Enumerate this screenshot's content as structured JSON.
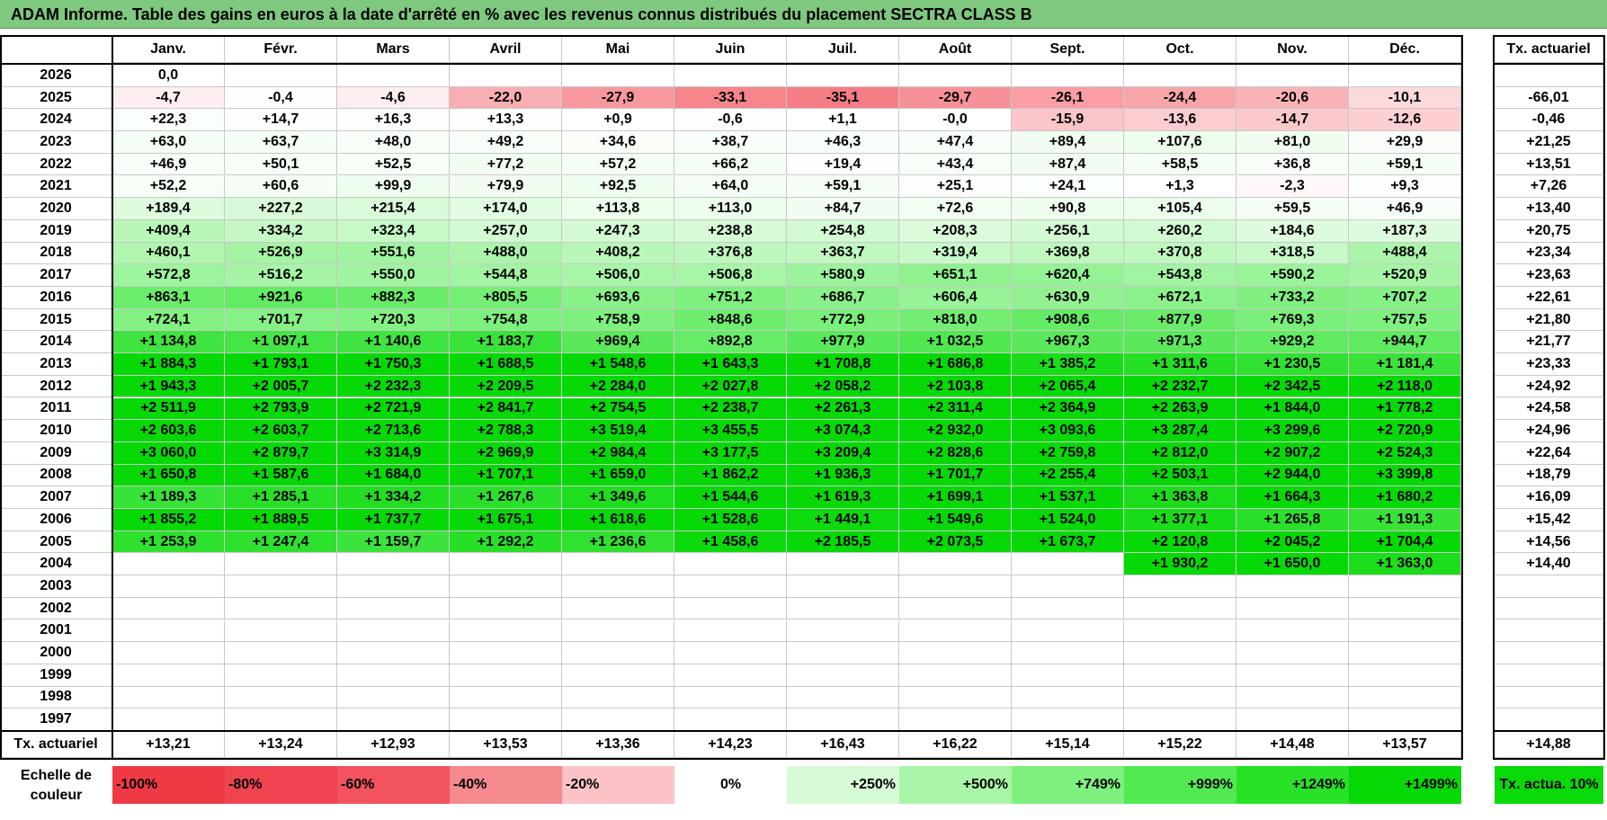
{
  "title": "ADAM Informe. Table des gains en euros à la date d'arrêté en % avec les revenus connus distribués du placement SECTRA CLASS B",
  "months": [
    "Janv.",
    "Févr.",
    "Mars",
    "Avril",
    "Mai",
    "Juin",
    "Juil.",
    "Août",
    "Sept.",
    "Oct.",
    "Nov.",
    "Déc."
  ],
  "rate_header": "Tx. actuariel",
  "rows": [
    {
      "year": "2026",
      "values": [
        "0,0",
        "",
        "",
        "",
        "",
        "",
        "",
        "",
        "",
        "",
        "",
        ""
      ],
      "rate": ""
    },
    {
      "year": "2025",
      "values": [
        "-4,7",
        "-0,4",
        "-4,6",
        "-22,0",
        "-27,9",
        "-33,1",
        "-35,1",
        "-29,7",
        "-26,1",
        "-24,4",
        "-20,6",
        "-10,1"
      ],
      "rate": "-66,01"
    },
    {
      "year": "2024",
      "values": [
        "+22,3",
        "+14,7",
        "+16,3",
        "+13,3",
        "+0,9",
        "-0,6",
        "+1,1",
        "-0,0",
        "-15,9",
        "-13,6",
        "-14,7",
        "-12,6"
      ],
      "rate": "-0,46"
    },
    {
      "year": "2023",
      "values": [
        "+63,0",
        "+63,7",
        "+48,0",
        "+49,2",
        "+34,6",
        "+38,7",
        "+46,3",
        "+47,4",
        "+89,4",
        "+107,6",
        "+81,0",
        "+29,9"
      ],
      "rate": "+21,25"
    },
    {
      "year": "2022",
      "values": [
        "+46,9",
        "+50,1",
        "+52,5",
        "+77,2",
        "+57,2",
        "+66,2",
        "+19,4",
        "+43,4",
        "+87,4",
        "+58,5",
        "+36,8",
        "+59,1"
      ],
      "rate": "+13,51"
    },
    {
      "year": "2021",
      "values": [
        "+52,2",
        "+60,6",
        "+99,9",
        "+79,9",
        "+92,5",
        "+64,0",
        "+59,1",
        "+25,1",
        "+24,1",
        "+1,3",
        "-2,3",
        "+9,3"
      ],
      "rate": "+7,26"
    },
    {
      "year": "2020",
      "values": [
        "+189,4",
        "+227,2",
        "+215,4",
        "+174,0",
        "+113,8",
        "+113,0",
        "+84,7",
        "+72,6",
        "+90,8",
        "+105,4",
        "+59,5",
        "+46,9"
      ],
      "rate": "+13,40"
    },
    {
      "year": "2019",
      "values": [
        "+409,4",
        "+334,2",
        "+323,4",
        "+257,0",
        "+247,3",
        "+238,8",
        "+254,8",
        "+208,3",
        "+256,1",
        "+260,2",
        "+184,6",
        "+187,3"
      ],
      "rate": "+20,75"
    },
    {
      "year": "2018",
      "values": [
        "+460,1",
        "+526,9",
        "+551,6",
        "+488,0",
        "+408,2",
        "+376,8",
        "+363,7",
        "+319,4",
        "+369,8",
        "+370,8",
        "+318,5",
        "+488,4"
      ],
      "rate": "+23,34"
    },
    {
      "year": "2017",
      "values": [
        "+572,8",
        "+516,2",
        "+550,0",
        "+544,8",
        "+506,0",
        "+506,8",
        "+580,9",
        "+651,1",
        "+620,4",
        "+543,8",
        "+590,2",
        "+520,9"
      ],
      "rate": "+23,63"
    },
    {
      "year": "2016",
      "values": [
        "+863,1",
        "+921,6",
        "+882,3",
        "+805,5",
        "+693,6",
        "+751,2",
        "+686,7",
        "+606,4",
        "+630,9",
        "+672,1",
        "+733,2",
        "+707,2"
      ],
      "rate": "+22,61"
    },
    {
      "year": "2015",
      "values": [
        "+724,1",
        "+701,7",
        "+720,3",
        "+754,8",
        "+758,9",
        "+848,6",
        "+772,9",
        "+818,0",
        "+908,6",
        "+877,9",
        "+769,3",
        "+757,5"
      ],
      "rate": "+21,80"
    },
    {
      "year": "2014",
      "values": [
        "+1 134,8",
        "+1 097,1",
        "+1 140,6",
        "+1 183,7",
        "+969,4",
        "+892,8",
        "+977,9",
        "+1 032,5",
        "+967,3",
        "+971,3",
        "+929,2",
        "+944,7"
      ],
      "rate": "+21,77"
    },
    {
      "year": "2013",
      "values": [
        "+1 884,3",
        "+1 793,1",
        "+1 750,3",
        "+1 688,5",
        "+1 548,6",
        "+1 643,3",
        "+1 708,8",
        "+1 686,8",
        "+1 385,2",
        "+1 311,6",
        "+1 230,5",
        "+1 181,4"
      ],
      "rate": "+23,33"
    },
    {
      "year": "2012",
      "values": [
        "+1 943,3",
        "+2 005,7",
        "+2 232,3",
        "+2 209,5",
        "+2 284,0",
        "+2 027,8",
        "+2 058,2",
        "+2 103,8",
        "+2 065,4",
        "+2 232,7",
        "+2 342,5",
        "+2 118,0"
      ],
      "rate": "+24,92"
    },
    {
      "year": "2011",
      "values": [
        "+2 511,9",
        "+2 793,9",
        "+2 721,9",
        "+2 841,7",
        "+2 754,5",
        "+2 238,7",
        "+2 261,3",
        "+2 311,4",
        "+2 364,9",
        "+2 263,9",
        "+1 844,0",
        "+1 778,2"
      ],
      "rate": "+24,58"
    },
    {
      "year": "2010",
      "values": [
        "+2 603,6",
        "+2 603,7",
        "+2 713,6",
        "+2 788,3",
        "+3 519,4",
        "+3 455,5",
        "+3 074,3",
        "+2 932,0",
        "+3 093,6",
        "+3 287,4",
        "+3 299,6",
        "+2 720,9"
      ],
      "rate": "+24,96"
    },
    {
      "year": "2009",
      "values": [
        "+3 060,0",
        "+2 879,7",
        "+3 314,9",
        "+2 969,9",
        "+2 984,4",
        "+3 177,5",
        "+3 209,4",
        "+2 828,6",
        "+2 759,8",
        "+2 812,0",
        "+2 907,2",
        "+2 524,3"
      ],
      "rate": "+22,64"
    },
    {
      "year": "2008",
      "values": [
        "+1 650,8",
        "+1 587,6",
        "+1 684,0",
        "+1 707,1",
        "+1 659,0",
        "+1 862,2",
        "+1 936,3",
        "+1 701,7",
        "+2 255,4",
        "+2 503,1",
        "+2 944,0",
        "+3 399,8"
      ],
      "rate": "+18,79"
    },
    {
      "year": "2007",
      "values": [
        "+1 189,3",
        "+1 285,1",
        "+1 334,2",
        "+1 267,6",
        "+1 349,6",
        "+1 544,6",
        "+1 619,3",
        "+1 699,1",
        "+1 537,1",
        "+1 363,8",
        "+1 664,3",
        "+1 680,2"
      ],
      "rate": "+16,09"
    },
    {
      "year": "2006",
      "values": [
        "+1 855,2",
        "+1 889,5",
        "+1 737,7",
        "+1 675,1",
        "+1 618,6",
        "+1 528,6",
        "+1 449,1",
        "+1 549,6",
        "+1 524,0",
        "+1 377,1",
        "+1 265,8",
        "+1 191,3"
      ],
      "rate": "+15,42"
    },
    {
      "year": "2005",
      "values": [
        "+1 253,9",
        "+1 247,4",
        "+1 159,7",
        "+1 292,2",
        "+1 236,6",
        "+1 458,6",
        "+2 185,5",
        "+2 073,5",
        "+1 673,7",
        "+2 120,8",
        "+2 045,2",
        "+1 704,4"
      ],
      "rate": "+14,56"
    },
    {
      "year": "2004",
      "values": [
        "",
        "",
        "",
        "",
        "",
        "",
        "",
        "",
        "",
        "+1 930,2",
        "+1 650,0",
        "+1 363,0"
      ],
      "rate": "+14,40"
    },
    {
      "year": "2003",
      "values": [
        "",
        "",
        "",
        "",
        "",
        "",
        "",
        "",
        "",
        "",
        "",
        ""
      ],
      "rate": ""
    },
    {
      "year": "2002",
      "values": [
        "",
        "",
        "",
        "",
        "",
        "",
        "",
        "",
        "",
        "",
        "",
        ""
      ],
      "rate": ""
    },
    {
      "year": "2001",
      "values": [
        "",
        "",
        "",
        "",
        "",
        "",
        "",
        "",
        "",
        "",
        "",
        ""
      ],
      "rate": ""
    },
    {
      "year": "2000",
      "values": [
        "",
        "",
        "",
        "",
        "",
        "",
        "",
        "",
        "",
        "",
        "",
        ""
      ],
      "rate": ""
    },
    {
      "year": "1999",
      "values": [
        "",
        "",
        "",
        "",
        "",
        "",
        "",
        "",
        "",
        "",
        "",
        ""
      ],
      "rate": ""
    },
    {
      "year": "1998",
      "values": [
        "",
        "",
        "",
        "",
        "",
        "",
        "",
        "",
        "",
        "",
        "",
        ""
      ],
      "rate": ""
    },
    {
      "year": "1997",
      "values": [
        "",
        "",
        "",
        "",
        "",
        "",
        "",
        "",
        "",
        "",
        "",
        ""
      ],
      "rate": ""
    }
  ],
  "footer": {
    "label": "Tx. actuariel",
    "values": [
      "+13,21",
      "+13,24",
      "+12,93",
      "+13,53",
      "+13,36",
      "+14,23",
      "+16,43",
      "+16,22",
      "+15,14",
      "+15,22",
      "+14,48",
      "+13,57"
    ],
    "total": "+14,88"
  },
  "legend": {
    "label": "Echelle de couleur",
    "items": [
      {
        "text": "-100%",
        "color": "#ef3a46",
        "align": "left"
      },
      {
        "text": "-80%",
        "color": "#f04450",
        "align": "left"
      },
      {
        "text": "-60%",
        "color": "#f2535e",
        "align": "left"
      },
      {
        "text": "-40%",
        "color": "#f58a8f",
        "align": "left"
      },
      {
        "text": "-20%",
        "color": "#fbc3c6",
        "align": "left"
      },
      {
        "text": "0%",
        "color": "#ffffff",
        "align": "center"
      },
      {
        "text": "+250%",
        "color": "#d6fad6",
        "align": "right"
      },
      {
        "text": "+500%",
        "color": "#a8f5a8",
        "align": "right"
      },
      {
        "text": "+749%",
        "color": "#7ef07e",
        "align": "right"
      },
      {
        "text": "+999%",
        "color": "#52ea52",
        "align": "right"
      },
      {
        "text": "+1249%",
        "color": "#28e228",
        "align": "right"
      },
      {
        "text": "+1499%",
        "color": "#06d906",
        "align": "right"
      }
    ],
    "rate_box": {
      "text": "Tx. actua. 10%",
      "color": "#0ad90a"
    }
  },
  "colors": {
    "title_bg": "#7fc87f",
    "row_colors": {
      "2026": [
        "#ffffff"
      ],
      "2025": [
        "#fde6e7",
        "#ffffff",
        "#fde6e7",
        "#f9b3b6",
        "#f7a3a7",
        "#f6949a",
        "#f58a8f",
        "#f7a0a4",
        "#f8aaae",
        "#f9b2b5",
        "#fabbbe",
        "#fcdadc"
      ],
      "2024": [
        "#f5fef5",
        "#f9fef9",
        "#f8fef8",
        "#fafefa",
        "#ffffff",
        "#ffffff",
        "#ffffff",
        "#ffffff",
        "#fcd2d4",
        "#fcd8da",
        "#fcd5d7",
        "#fcdadc"
      ]
    }
  }
}
